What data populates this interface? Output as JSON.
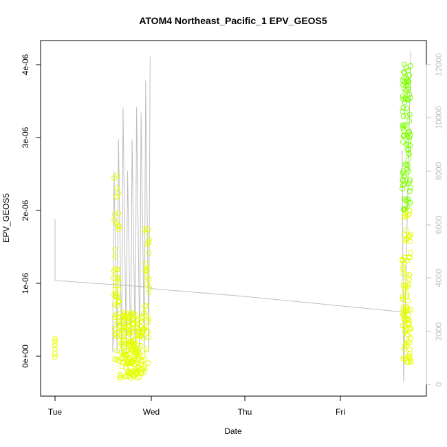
{
  "chart_data": {
    "type": "scatter",
    "title": "ATOM4 Northeast_Pacific_1 EPV_GEOS5",
    "xlabel": "Date",
    "ylabel": "EPV_GEOS5",
    "x_ticks": [
      "Tue",
      "Wed",
      "Thu",
      "Fri"
    ],
    "x_range_days": [
      0,
      3.85
    ],
    "y_ticks": [
      "0e+00",
      "1e-06",
      "2e-06",
      "3e-06",
      "4e-06"
    ],
    "ylim": [
      -5.5e-07,
      4.4e-06
    ],
    "y2_ticks": [
      "0",
      "2000",
      "4000",
      "6000",
      "8000",
      "10000",
      "12000"
    ],
    "y2lim": [
      -700,
      12900
    ],
    "grid": false,
    "colors": {
      "altitude_line": "#bebebe",
      "points_low": "#e5ff00",
      "points_high": "#7fff00",
      "axis": "#000000",
      "right_axis": "#bebebe"
    },
    "series": [
      {
        "segments": [
          {
            "x": [
              0.0,
              0.0,
              1.0,
              1.0
            ],
            "y": [
              6200,
              3900,
              3650,
              3600
            ]
          },
          {
            "x": [
              1.0,
              2.0,
              3.0,
              3.7
            ],
            "y": [
              3600,
              3300,
              2950,
              2700
            ]
          }
        ],
        "flights": [
          {
            "x0": 0.62,
            "x1": 1.0
          },
          {
            "x0": 3.65,
            "x1": 3.74
          }
        ]
      },
      {
        "points": [
          {
            "x": 0.0,
            "y": 2.4e-07
          },
          {
            "x": 0.0,
            "y": 2e-07
          },
          {
            "x": 0.0,
            "y": 1.5e-07
          },
          {
            "x": 0.0,
            "y": 1e-07
          },
          {
            "x": 0.0,
            "y": 3e-08
          },
          {
            "x": 0.0,
            "y": -1e-08
          },
          {
            "x": 3.7,
            "y": 1.5e-07
          },
          {
            "x": 3.7,
            "y": 3e-07
          },
          {
            "x": 3.72,
            "y": 5e-07
          }
        ]
      }
    ]
  }
}
